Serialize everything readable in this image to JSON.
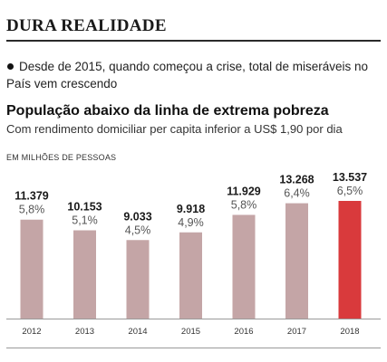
{
  "header": {
    "kicker": "DURA REALIDADE",
    "lead": "Desde de 2015, quando começou a crise, total de miseráveis no País vem crescendo"
  },
  "chart_data": {
    "type": "bar",
    "title": "População abaixo da linha de extrema pobreza",
    "subtitle": "Com rendimento domiciliar per capita inferior a US$ 1,90 por dia",
    "unit_label": "EM MILHÕES DE PESSOAS",
    "categories": [
      "2012",
      "2013",
      "2014",
      "2015",
      "2016",
      "2017",
      "2018"
    ],
    "series": [
      {
        "values": [
          11.379,
          10.153,
          9.033,
          9.918,
          11.929,
          13.268,
          13.537
        ],
        "value_labels": [
          "11.379",
          "10.153",
          "9.033",
          "9.918",
          "11.929",
          "13.268",
          "13.537"
        ],
        "percent_labels": [
          "5,8%",
          "5,1%",
          "4,5%",
          "4,9%",
          "5,8%",
          "6,4%",
          "6,5%"
        ]
      }
    ],
    "colors": {
      "bar": "#c4a5a6",
      "highlight": "#d93a3c",
      "highlight_index": 6
    },
    "grid": false,
    "legend": "none"
  }
}
